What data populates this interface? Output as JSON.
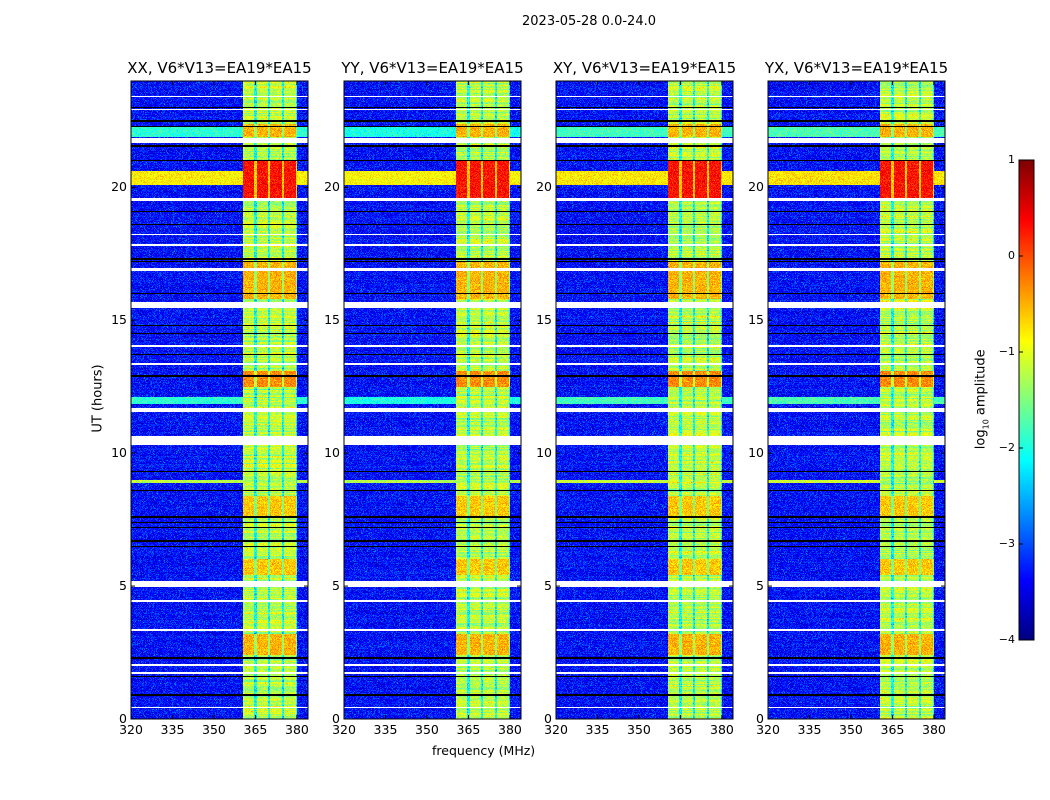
{
  "chart_data": {
    "type": "heatmap",
    "title": "2023-05-28 0.0-24.0",
    "xlabel": "frequency (MHz)",
    "ylabel": "UT (hours)",
    "xlim": [
      320,
      384
    ],
    "ylim": [
      0,
      24
    ],
    "xticks": [
      "320",
      "335",
      "350",
      "365",
      "380"
    ],
    "xtick_values": [
      320,
      335,
      350,
      365,
      380
    ],
    "yticks": [
      "0",
      "5",
      "10",
      "15",
      "20"
    ],
    "ytick_values": [
      0,
      5,
      10,
      15,
      20
    ],
    "panels": [
      {
        "title": "XX, V6*V13=EA19*EA15",
        "scale": 1.0
      },
      {
        "title": "YY, V6*V13=EA19*EA15",
        "scale": 1.05
      },
      {
        "title": "XY, V6*V13=EA19*EA15",
        "scale": 0.95
      },
      {
        "title": "YX, V6*V13=EA19*EA15",
        "scale": 0.92
      }
    ],
    "colorbar": {
      "label_main": "log",
      "label_sub": "10",
      "label_rest": " amplitude",
      "range": [
        -4,
        1
      ],
      "colormap": "jet",
      "ticks": [
        "1",
        "0",
        "−1",
        "−2",
        "−3",
        "−4"
      ],
      "tick_values": [
        1,
        0,
        -1,
        -2,
        -3,
        -4
      ]
    },
    "background_level": -3.3,
    "rfi_band_mhz": [
      360.5,
      380
    ],
    "rfi_band_level": -1.2,
    "channel_gaps_mhz": [
      365,
      370,
      375,
      380
    ],
    "band_segments": [
      {
        "t": [
          19.6,
          21.0
        ],
        "v": 0.3
      },
      {
        "t": [
          12.5,
          13.1
        ],
        "v": -0.3
      },
      {
        "t": [
          15.8,
          17.2
        ],
        "v": -0.5
      },
      {
        "t": [
          2.4,
          3.2
        ],
        "v": -0.5
      },
      {
        "t": [
          7.6,
          8.4
        ],
        "v": -0.6
      },
      {
        "t": [
          5.4,
          6.0
        ],
        "v": -0.6
      },
      {
        "t": [
          21.9,
          22.4
        ],
        "v": -0.5
      }
    ],
    "broadband_rows": [
      {
        "t": [
          20.1,
          20.6
        ],
        "v": -0.8
      },
      {
        "t": [
          21.9,
          22.3
        ],
        "v": -1.9
      },
      {
        "t": [
          11.85,
          12.1
        ],
        "v": -1.9
      },
      {
        "t": [
          8.88,
          9.0
        ],
        "v": -1.2
      }
    ],
    "flagged_hours": [
      [
        21.65,
        21.85
      ],
      [
        10.3,
        10.65
      ],
      [
        15.45,
        15.7
      ],
      [
        4.95,
        5.2
      ],
      [
        11.55,
        11.7
      ],
      [
        19.5,
        19.58
      ],
      [
        0.4,
        0.46
      ],
      [
        1.7,
        1.76
      ],
      [
        2.0,
        2.06
      ],
      [
        3.3,
        3.4
      ],
      [
        4.4,
        4.46
      ],
      [
        13.3,
        13.4
      ],
      [
        14.0,
        14.06
      ],
      [
        16.85,
        16.95
      ],
      [
        17.8,
        17.86
      ],
      [
        18.2,
        18.26
      ],
      [
        22.9,
        22.96
      ],
      [
        23.4,
        23.45
      ]
    ],
    "masked_hours": [
      23.0,
      22.5,
      22.3,
      21.55,
      21.0,
      19.1,
      18.6,
      17.3,
      17.2,
      16.0,
      14.8,
      14.5,
      13.7,
      12.9,
      9.3,
      8.6,
      7.6,
      7.4,
      7.2,
      6.7,
      6.5,
      2.3,
      1.6,
      0.9
    ]
  }
}
